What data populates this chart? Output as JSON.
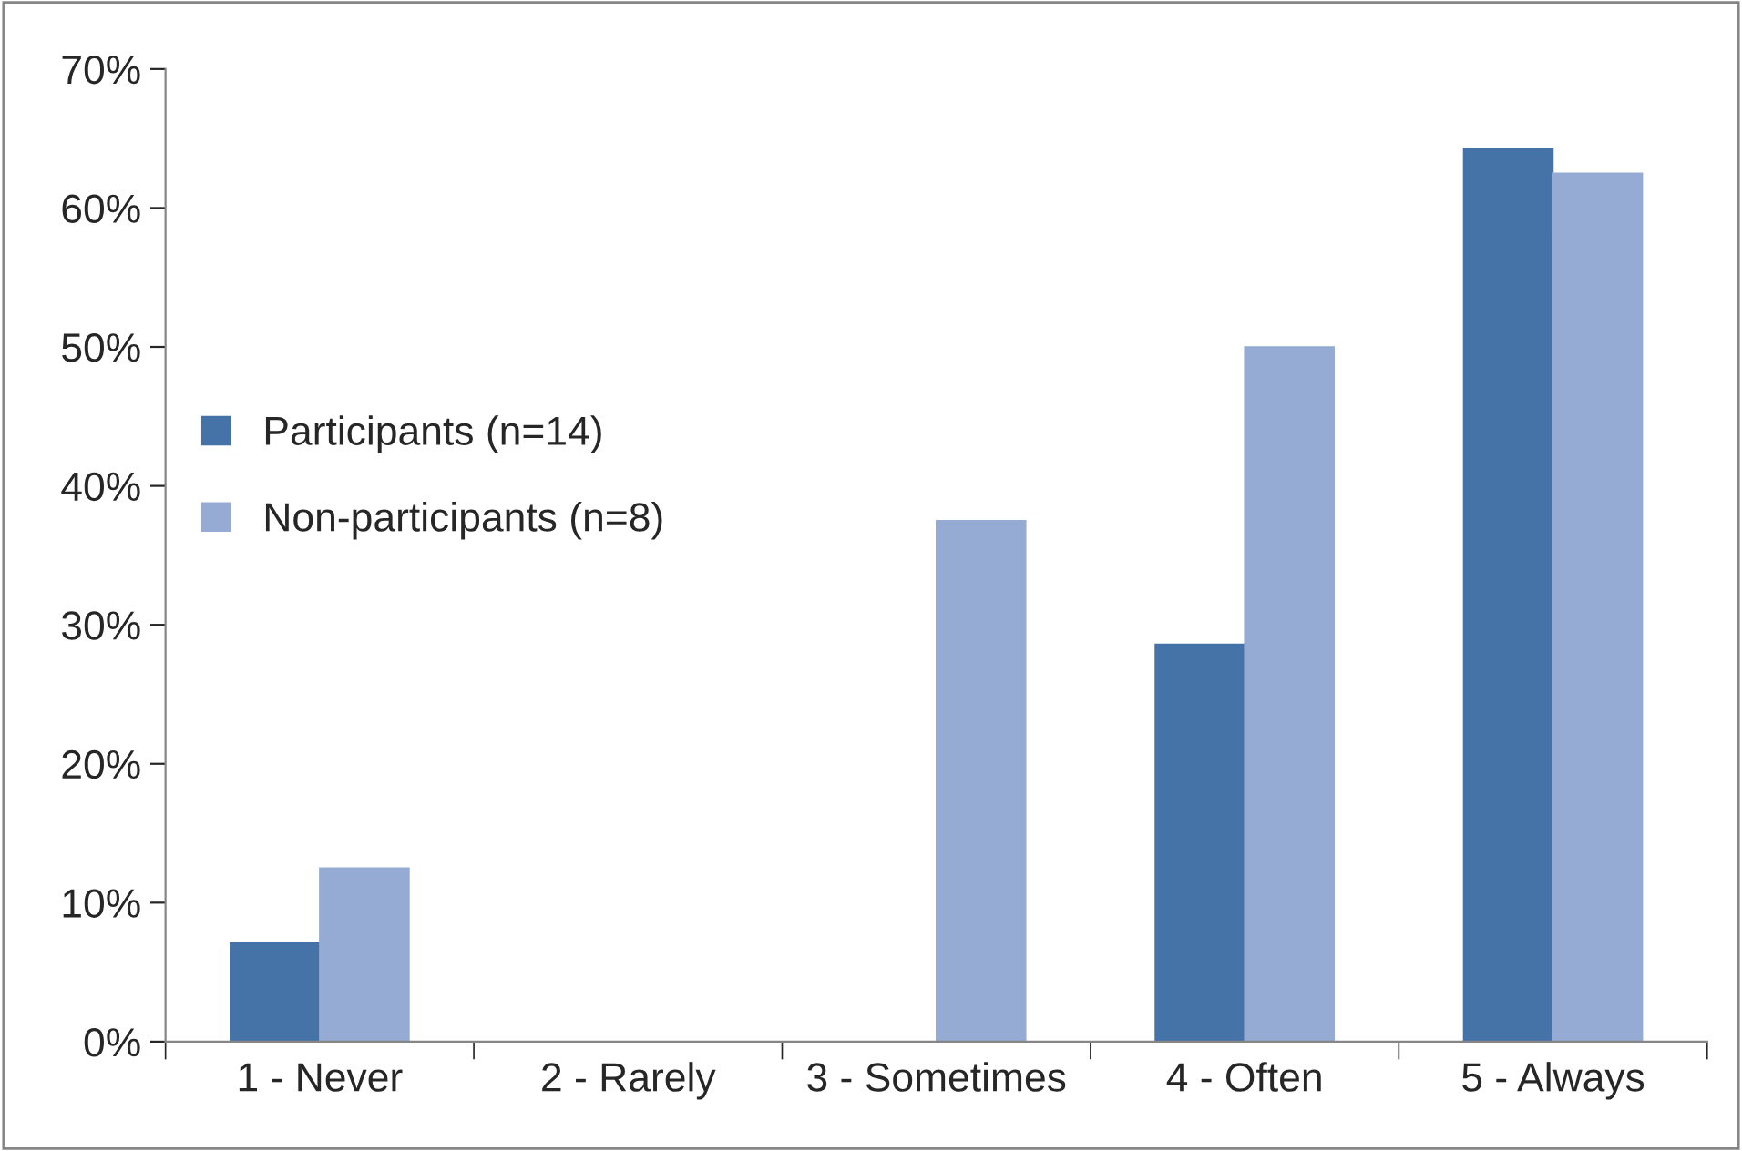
{
  "chart_data": {
    "type": "bar",
    "categories": [
      "1 - Never",
      "2 - Rarely",
      "3 - Sometimes",
      "4 - Often",
      "5 - Always"
    ],
    "series": [
      {
        "name": "Participants (n=14)",
        "color": "#4572a7",
        "values": [
          7.1,
          0,
          0,
          28.6,
          64.3
        ]
      },
      {
        "name": "Non-participants (n=8)",
        "color": "#95abd3",
        "values": [
          12.5,
          0,
          37.5,
          50,
          62.5
        ]
      }
    ],
    "ylim": [
      0,
      70
    ],
    "yticks": [
      {
        "value": 0,
        "label": "0%"
      },
      {
        "value": 10,
        "label": "10%"
      },
      {
        "value": 20,
        "label": "20%"
      },
      {
        "value": 30,
        "label": "30%"
      },
      {
        "value": 40,
        "label": "40%"
      },
      {
        "value": 50,
        "label": "50%"
      },
      {
        "value": 60,
        "label": "60%"
      },
      {
        "value": 70,
        "label": "70%"
      }
    ],
    "grid": false,
    "legend": "left"
  }
}
